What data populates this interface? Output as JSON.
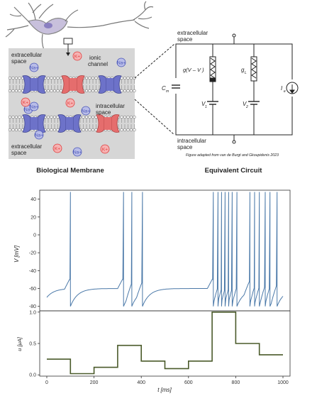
{
  "membrane_panel": {
    "caption": "Biological Membrane",
    "labels": {
      "extracellular_top": [
        "extracellular",
        "space"
      ],
      "ionic_channel": [
        "ionic",
        "channel"
      ],
      "intracellular": [
        "intracellular",
        "space"
      ],
      "extracellular_bottom": [
        "extracellular",
        "space"
      ]
    },
    "ions": {
      "sodium": "Na+",
      "potassium": "K+"
    },
    "colors": {
      "sodium": "#4a56b8",
      "potassium": "#e03a3a",
      "channel_blue": "#6d72c9",
      "channel_red": "#e56d6d",
      "panel_bg": "#d6d6d6"
    }
  },
  "circuit_panel": {
    "caption": "Equivalent Circuit",
    "labels": {
      "extracellular": [
        "extracellular",
        "space"
      ],
      "intracellular": [
        "intracellular",
        "space"
      ],
      "cm": "C",
      "cm_sub": "m",
      "g_var": "g(V  – V )",
      "g_leak": "g",
      "g_leak_sub": "L",
      "v1": "V",
      "v1_sub": "1",
      "v2": "V",
      "v2_sub": "2",
      "ie": "I",
      "ie_sub": "e"
    },
    "credit": "Figure adapted from van de Burgt and Gkoupidenis 2023"
  },
  "chart_data": [
    {
      "type": "line",
      "ylabel": "V [mV]",
      "ylim": [
        -85,
        50
      ],
      "yticks": [
        40,
        20,
        0,
        -20,
        -40,
        -60,
        -80
      ],
      "xlim": [
        -30,
        1030
      ],
      "color": "#4a78a8",
      "spike_times": [
        100,
        325,
        360,
        405,
        705,
        725,
        740,
        755,
        770,
        785,
        805,
        860,
        880,
        900,
        925,
        945,
        975
      ],
      "rest": -70,
      "peak": 48
    },
    {
      "type": "line",
      "ylabel": "u [μA]",
      "xlabel": "t [ms]",
      "ylim": [
        -0.02,
        1.02
      ],
      "yticks": [
        1.0,
        0.5,
        0.0
      ],
      "xticks": [
        0,
        200,
        400,
        600,
        800,
        1000
      ],
      "xlim": [
        -30,
        1030
      ],
      "color": "#4a5a2a",
      "x": [
        0,
        100,
        100,
        200,
        200,
        300,
        300,
        400,
        400,
        500,
        500,
        600,
        600,
        700,
        700,
        800,
        800,
        900,
        900,
        1000
      ],
      "y": [
        0.25,
        0.25,
        0.02,
        0.02,
        0.12,
        0.12,
        0.47,
        0.47,
        0.22,
        0.22,
        0.1,
        0.1,
        0.22,
        0.22,
        1.0,
        1.0,
        0.5,
        0.5,
        0.32,
        0.32
      ]
    }
  ]
}
